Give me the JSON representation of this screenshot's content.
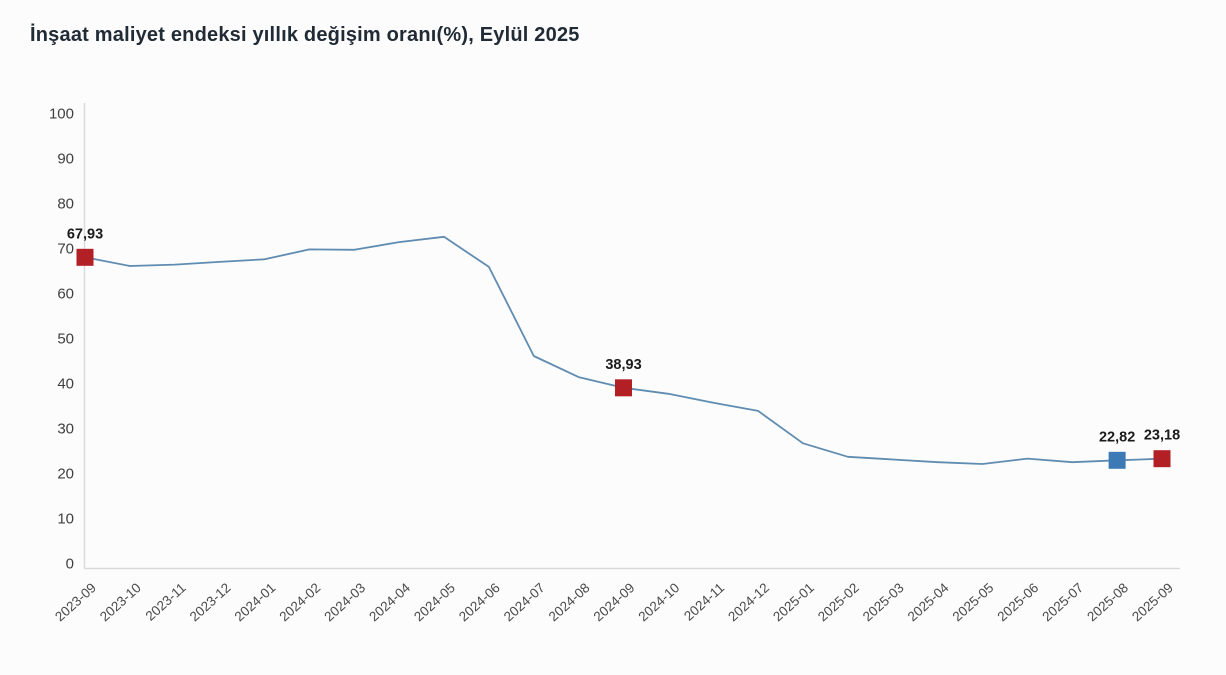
{
  "title": "İnşaat maliyet endeksi yıllık değişim oranı(%), Eylül 2025",
  "colors": {
    "background": "#fcfcfc",
    "title": "#212b36",
    "line": "#5f8cb0",
    "marker_red": "#b22026",
    "marker_blue": "#3d7ab5",
    "axis": "#d9d9d9",
    "tick_label": "#3f3f3f",
    "x_label": "#4a4a4a",
    "annotation_label": "#1b1b1b"
  },
  "chart_data": {
    "type": "line",
    "title": "İnşaat maliyet endeksi yıllık değişim oranı(%), Eylül 2025",
    "xlabel": "",
    "ylabel": "",
    "ylim": [
      0,
      100
    ],
    "yticks": [
      0,
      10,
      20,
      30,
      40,
      50,
      60,
      70,
      80,
      90,
      100
    ],
    "grid": false,
    "legend": "none",
    "x": [
      "2023-09",
      "2023-10",
      "2023-11",
      "2023-12",
      "2024-01",
      "2024-02",
      "2024-03",
      "2024-04",
      "2024-05",
      "2024-06",
      "2024-07",
      "2024-08",
      "2024-09",
      "2024-10",
      "2024-11",
      "2024-12",
      "2025-01",
      "2025-02",
      "2025-03",
      "2025-04",
      "2025-05",
      "2025-06",
      "2025-07",
      "2025-08",
      "2025-09"
    ],
    "values": [
      67.93,
      66.0,
      66.3,
      66.9,
      67.5,
      69.7,
      69.6,
      71.3,
      72.5,
      65.8,
      46.0,
      41.3,
      38.93,
      37.6,
      35.6,
      33.8,
      26.6,
      23.6,
      23.0,
      22.4,
      22.0,
      23.2,
      22.4,
      22.82,
      23.18
    ],
    "annotations": [
      {
        "x": "2023-09",
        "value": 67.93,
        "label": "67,93",
        "marker": "square",
        "color_key": "marker_red"
      },
      {
        "x": "2024-09",
        "value": 38.93,
        "label": "38,93",
        "marker": "square",
        "color_key": "marker_red"
      },
      {
        "x": "2025-08",
        "value": 22.82,
        "label": "22,82",
        "marker": "square",
        "color_key": "marker_blue"
      },
      {
        "x": "2025-09",
        "value": 23.18,
        "label": "23,18",
        "marker": "square",
        "color_key": "marker_red"
      }
    ]
  }
}
